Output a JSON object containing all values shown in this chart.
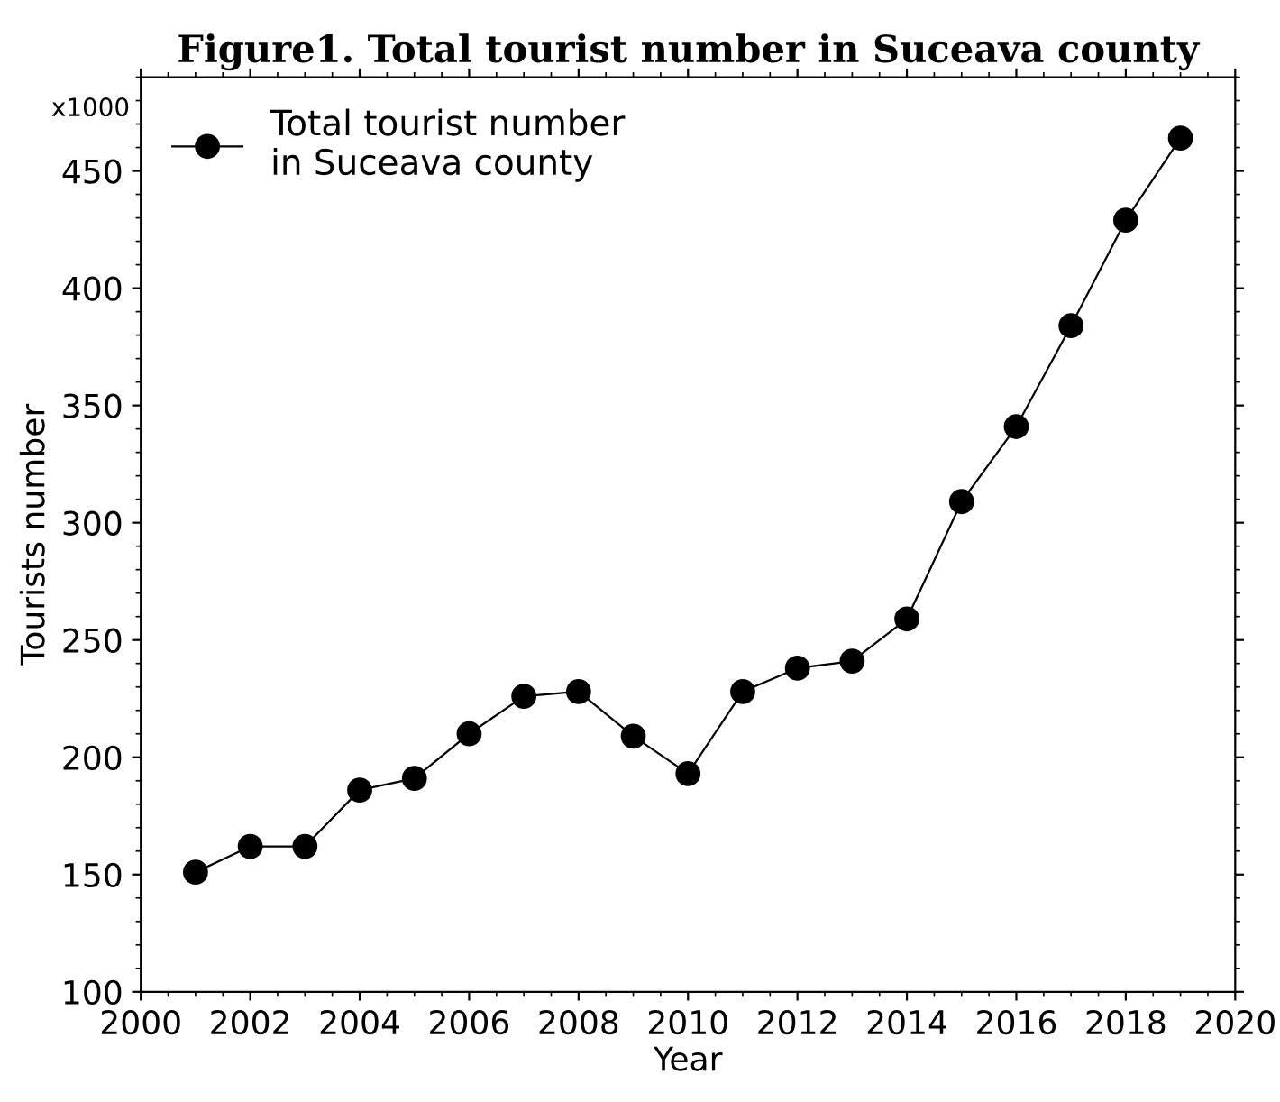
{
  "chart_data": {
    "type": "line",
    "title": "Figure1. Total tourist number in Suceava county",
    "xlabel": "Year",
    "ylabel": "Tourists number",
    "annotations": [
      "x1000"
    ],
    "x": [
      2001,
      2002,
      2003,
      2004,
      2005,
      2006,
      2007,
      2008,
      2009,
      2010,
      2011,
      2012,
      2013,
      2014,
      2015,
      2016,
      2017,
      2018,
      2019
    ],
    "series": [
      {
        "name": "Total tourist number\nin Suceava county",
        "color": "#000000",
        "values": [
          151,
          162,
          162,
          186,
          191,
          210,
          226,
          228,
          209,
          193,
          228,
          238,
          241,
          259,
          309,
          341,
          384,
          429,
          464
        ]
      }
    ],
    "xlim": [
      2000,
      2020
    ],
    "xticks": [
      2000,
      2002,
      2004,
      2006,
      2008,
      2010,
      2012,
      2014,
      2016,
      2018,
      2020
    ],
    "ylim": [
      100,
      490
    ],
    "yticks": [
      100,
      150,
      200,
      250,
      300,
      350,
      400,
      450
    ],
    "grid": false,
    "legend": "top left",
    "marker": "circle",
    "line_style": "solid"
  }
}
